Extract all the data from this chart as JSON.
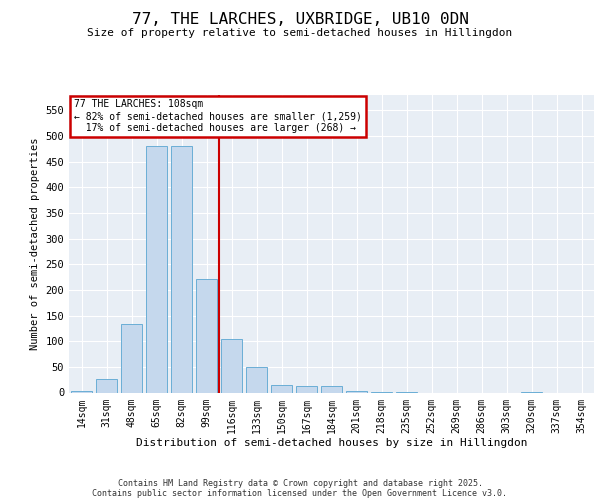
{
  "title": "77, THE LARCHES, UXBRIDGE, UB10 0DN",
  "subtitle": "Size of property relative to semi-detached houses in Hillingdon",
  "xlabel": "Distribution of semi-detached houses by size in Hillingdon",
  "ylabel": "Number of semi-detached properties",
  "categories": [
    "14sqm",
    "31sqm",
    "48sqm",
    "65sqm",
    "82sqm",
    "99sqm",
    "116sqm",
    "133sqm",
    "150sqm",
    "167sqm",
    "184sqm",
    "201sqm",
    "218sqm",
    "235sqm",
    "252sqm",
    "269sqm",
    "286sqm",
    "303sqm",
    "320sqm",
    "337sqm",
    "354sqm"
  ],
  "values": [
    2,
    27,
    133,
    480,
    480,
    222,
    105,
    50,
    14,
    12,
    13,
    3,
    1,
    1,
    0,
    0,
    0,
    0,
    1,
    0,
    0
  ],
  "bar_color": "#c5d8ed",
  "bar_edgecolor": "#6aaed6",
  "vline_color": "#cc0000",
  "annotation_line1": "77 THE LARCHES: 108sqm",
  "annotation_line2": "← 82% of semi-detached houses are smaller (1,259)",
  "annotation_line3": "  17% of semi-detached houses are larger (268) →",
  "annotation_box_edgecolor": "#cc0000",
  "ylim": [
    0,
    580
  ],
  "yticks": [
    0,
    50,
    100,
    150,
    200,
    250,
    300,
    350,
    400,
    450,
    500,
    550
  ],
  "footer_line1": "Contains HM Land Registry data © Crown copyright and database right 2025.",
  "footer_line2": "Contains public sector information licensed under the Open Government Licence v3.0.",
  "bg_color": "#e8eef5"
}
